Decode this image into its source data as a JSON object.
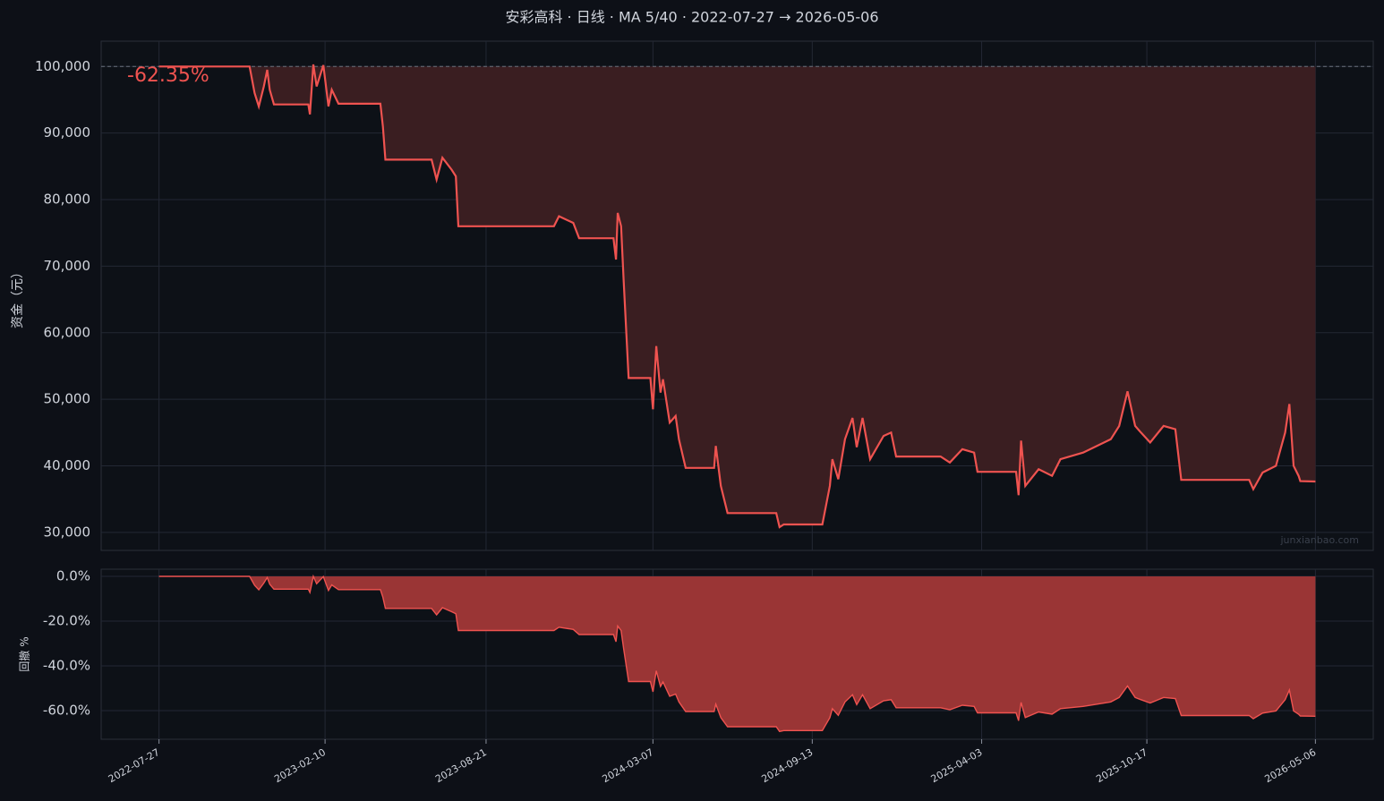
{
  "chart_data": [
    {
      "type": "line",
      "title": "安彩高科 · 日线 · MA 5/40 · 2022-07-27 → 2026-05-06",
      "ylabel": "资金（元）",
      "annotation": "-62.35%",
      "watermark": "junxianbao.com",
      "baseline": 100000,
      "grid": true,
      "fill_color": "#3a1e21",
      "x": [
        "2022-07-27",
        "2022-11-12",
        "2022-11-18",
        "2022-11-23",
        "2022-11-29",
        "2022-12-03",
        "2022-12-06",
        "2022-12-11",
        "2023-01-21",
        "2023-01-23",
        "2023-01-27",
        "2023-01-31",
        "2023-02-08",
        "2023-02-14",
        "2023-02-18",
        "2023-02-26",
        "2023-04-17",
        "2023-04-20",
        "2023-04-23",
        "2023-06-17",
        "2023-06-23",
        "2023-06-30",
        "2023-07-11",
        "2023-07-16",
        "2023-07-19",
        "2023-11-10",
        "2023-11-16",
        "2023-12-03",
        "2023-12-10",
        "2024-01-20",
        "2024-01-23",
        "2024-01-25",
        "2024-01-29",
        "2024-02-01",
        "2024-02-07",
        "2024-03-04",
        "2024-03-07",
        "2024-03-11",
        "2024-03-16",
        "2024-03-19",
        "2024-03-27",
        "2024-04-03",
        "2024-04-07",
        "2024-04-15",
        "2024-05-19",
        "2024-05-21",
        "2024-05-27",
        "2024-06-04",
        "2024-08-01",
        "2024-08-05",
        "2024-08-10",
        "2024-09-25",
        "2024-10-04",
        "2024-10-07",
        "2024-10-14",
        "2024-10-22",
        "2024-10-31",
        "2024-11-05",
        "2024-11-12",
        "2024-11-21",
        "2024-12-07",
        "2024-12-16",
        "2024-12-22",
        "2025-02-13",
        "2025-02-24",
        "2025-03-11",
        "2025-03-25",
        "2025-03-29",
        "2025-05-14",
        "2025-05-17",
        "2025-05-20",
        "2025-05-25",
        "2025-06-10",
        "2025-06-26",
        "2025-07-06",
        "2025-08-02",
        "2025-09-04",
        "2025-09-14",
        "2025-09-24",
        "2025-10-03",
        "2025-10-10",
        "2025-10-21",
        "2025-11-06",
        "2025-11-20",
        "2025-11-27",
        "2026-02-16",
        "2026-02-21",
        "2026-03-04",
        "2026-03-20",
        "2026-03-31",
        "2026-04-05",
        "2026-04-10",
        "2026-04-16",
        "2026-04-18",
        "2026-05-06"
      ],
      "series": [
        {
          "color": "#ef5350",
          "values": [
            100000,
            100000,
            96000,
            94000,
            97000,
            99500,
            96500,
            94300,
            94300,
            92800,
            100300,
            97000,
            100200,
            94000,
            96500,
            94400,
            94400,
            91000,
            86000,
            86000,
            83000,
            86300,
            84500,
            83500,
            76000,
            76000,
            77500,
            76500,
            74200,
            74200,
            71000,
            78000,
            76000,
            68000,
            53200,
            53200,
            48500,
            58000,
            51000,
            53000,
            46500,
            47500,
            44000,
            39700,
            39700,
            43000,
            37000,
            32900,
            32900,
            30800,
            31200,
            31200,
            37000,
            41000,
            38000,
            44000,
            47200,
            42800,
            47200,
            41000,
            44500,
            45000,
            41400,
            41400,
            40500,
            42500,
            42000,
            39100,
            39100,
            35600,
            43800,
            37000,
            39500,
            38500,
            41000,
            42000,
            44000,
            46000,
            51200,
            46000,
            45000,
            43500,
            46000,
            45500,
            37900,
            37900,
            36500,
            39000,
            40000,
            45000,
            49300,
            40000,
            38500,
            37700,
            37650
          ]
        }
      ],
      "xlim": [
        "2022-05-19",
        "2026-07-14"
      ],
      "xticks": [
        "2022-07-27",
        "2023-02-10",
        "2023-08-21",
        "2024-03-07",
        "2024-09-13",
        "2025-04-03",
        "2025-10-17",
        "2026-05-06"
      ],
      "ylim": [
        27300,
        103800
      ],
      "yticks": [
        {
          "value": 30000,
          "label": "30,000"
        },
        {
          "value": 40000,
          "label": "40,000"
        },
        {
          "value": 50000,
          "label": "50,000"
        },
        {
          "value": 60000,
          "label": "60,000"
        },
        {
          "value": 70000,
          "label": "70,000"
        },
        {
          "value": 80000,
          "label": "80,000"
        },
        {
          "value": 90000,
          "label": "90,000"
        },
        {
          "value": 100000,
          "label": "100,000"
        }
      ]
    },
    {
      "type": "area",
      "ylabel": "回撤 %",
      "grid": true,
      "fill_color": "#9a3535",
      "x": [
        "2022-07-27",
        "2022-11-12",
        "2022-11-18",
        "2022-11-23",
        "2022-11-29",
        "2022-12-03",
        "2022-12-06",
        "2022-12-11",
        "2023-01-21",
        "2023-01-23",
        "2023-01-27",
        "2023-01-31",
        "2023-02-08",
        "2023-02-14",
        "2023-02-18",
        "2023-02-26",
        "2023-04-17",
        "2023-04-20",
        "2023-04-23",
        "2023-06-17",
        "2023-06-23",
        "2023-06-30",
        "2023-07-11",
        "2023-07-16",
        "2023-07-19",
        "2023-11-10",
        "2023-11-16",
        "2023-12-03",
        "2023-12-10",
        "2024-01-20",
        "2024-01-23",
        "2024-01-25",
        "2024-01-29",
        "2024-02-01",
        "2024-02-07",
        "2024-03-04",
        "2024-03-07",
        "2024-03-11",
        "2024-03-16",
        "2024-03-19",
        "2024-03-27",
        "2024-04-03",
        "2024-04-07",
        "2024-04-15",
        "2024-05-19",
        "2024-05-21",
        "2024-05-27",
        "2024-06-04",
        "2024-08-01",
        "2024-08-05",
        "2024-08-10",
        "2024-09-25",
        "2024-10-04",
        "2024-10-07",
        "2024-10-14",
        "2024-10-22",
        "2024-10-31",
        "2024-11-05",
        "2024-11-12",
        "2024-11-21",
        "2024-12-07",
        "2024-12-16",
        "2024-12-22",
        "2025-02-13",
        "2025-02-24",
        "2025-03-11",
        "2025-03-25",
        "2025-03-29",
        "2025-05-14",
        "2025-05-17",
        "2025-05-20",
        "2025-05-25",
        "2025-06-10",
        "2025-06-26",
        "2025-07-06",
        "2025-08-02",
        "2025-09-04",
        "2025-09-14",
        "2025-09-24",
        "2025-10-03",
        "2025-10-10",
        "2025-10-21",
        "2025-11-06",
        "2025-11-20",
        "2025-11-27",
        "2026-02-16",
        "2026-02-21",
        "2026-03-04",
        "2026-03-20",
        "2026-03-31",
        "2026-04-05",
        "2026-04-10",
        "2026-04-16",
        "2026-04-18",
        "2026-05-06"
      ],
      "series": [
        {
          "color": "#ef5350",
          "values": [
            0,
            0,
            -4,
            -6,
            -3,
            -0.5,
            -3.5,
            -5.7,
            -5.7,
            -7.2,
            0,
            -3.3,
            -0.1,
            -6.3,
            -3.8,
            -5.9,
            -5.9,
            -9.3,
            -14.3,
            -14.3,
            -17.2,
            -14.0,
            -15.8,
            -16.7,
            -24.2,
            -24.2,
            -22.7,
            -23.7,
            -26.0,
            -26.0,
            -29.2,
            -22.2,
            -24.2,
            -32.2,
            -47.0,
            -47.0,
            -51.6,
            -42.2,
            -49.2,
            -47.2,
            -53.6,
            -52.6,
            -56.1,
            -60.4,
            -60.4,
            -57.1,
            -63.1,
            -67.2,
            -67.2,
            -69.3,
            -68.9,
            -68.9,
            -63.1,
            -59.1,
            -62.1,
            -56.1,
            -52.9,
            -57.3,
            -52.9,
            -59.1,
            -55.6,
            -55.1,
            -58.7,
            -58.7,
            -59.6,
            -57.6,
            -58.1,
            -61.0,
            -61.0,
            -64.5,
            -56.3,
            -63.1,
            -60.6,
            -61.6,
            -59.1,
            -58.1,
            -56.1,
            -54.1,
            -49.0,
            -54.1,
            -55.1,
            -56.6,
            -54.1,
            -54.6,
            -62.2,
            -62.2,
            -63.6,
            -61.1,
            -60.1,
            -55.1,
            -50.8,
            -60.1,
            -61.6,
            -62.4,
            -62.5
          ]
        }
      ],
      "xlim": [
        "2022-05-19",
        "2026-07-14"
      ],
      "xticks": [
        "2022-07-27",
        "2023-02-10",
        "2023-08-21",
        "2024-03-07",
        "2024-09-13",
        "2025-04-03",
        "2025-10-17",
        "2026-05-06"
      ],
      "ylim": [
        -72.8,
        3.2
      ],
      "yticks": [
        {
          "value": -60,
          "label": "-60.0%"
        },
        {
          "value": -40,
          "label": "-40.0%"
        },
        {
          "value": -20,
          "label": "-20.0%"
        },
        {
          "value": 0,
          "label": "0.0%"
        }
      ]
    }
  ]
}
